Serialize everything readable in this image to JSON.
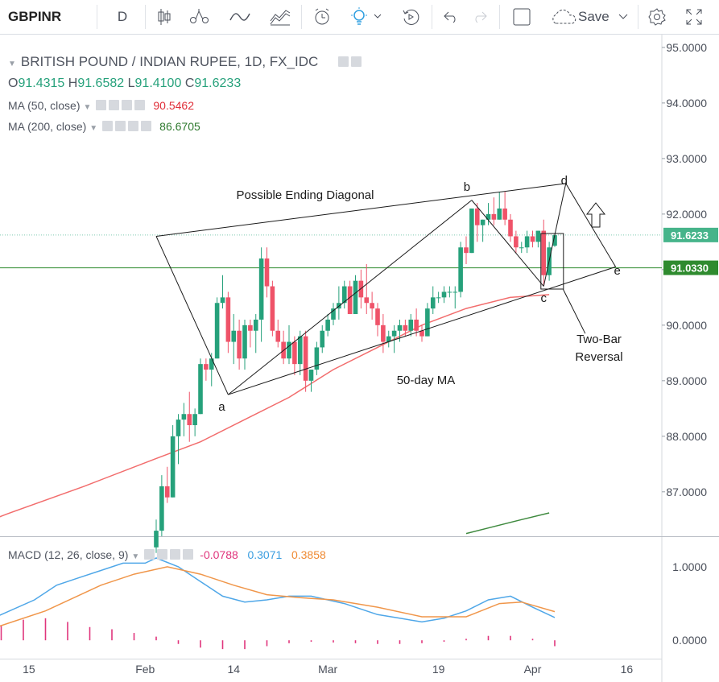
{
  "toolbar": {
    "symbol": "GBPINR",
    "interval": "D",
    "save_label": "Save",
    "icons": [
      "candles-icon",
      "compare-icon",
      "indicators-icon",
      "templates-icon",
      "alert-icon",
      "replay-icon",
      "undo-icon",
      "redo-icon",
      "fullscreen-icon"
    ]
  },
  "legend": {
    "title": "BRITISH POUND / INDIAN RUPEE, 1D, FX_IDC",
    "o_label": "O",
    "o": "91.4315",
    "h_label": "H",
    "h": "91.6582",
    "l_label": "L",
    "l": "91.4100",
    "c_label": "C",
    "c": "91.6233",
    "ma50_label": "MA (50, close)",
    "ma50_value": "90.5462",
    "ma200_label": "MA (200, close)",
    "ma200_value": "86.6705",
    "macd_label": "MACD (12, 26, close, 9)",
    "macd_hist": "-0.0788",
    "macd_line": "0.3071",
    "macd_signal": "0.3858"
  },
  "colors": {
    "up": "#26a17b",
    "down": "#ef5369",
    "ma50": "#f26d6d",
    "ma200": "#3f8a3f",
    "macd": "#4fa7e8",
    "signal": "#f0964a",
    "hist": "#e0357c",
    "price_tag": "#46b48a",
    "level_tag": "#2f8b2f"
  },
  "annotations": {
    "diagonal": "Possible Ending Diagonal",
    "a": "a",
    "b": "b",
    "c": "c",
    "d": "d",
    "e": "e",
    "ma_label": "50-day MA",
    "reversal_1": "Two-Bar",
    "reversal_2": "Reversal"
  },
  "chart_data": {
    "type": "candlestick",
    "price_axis": {
      "ylim": [
        86.2,
        95.1
      ],
      "ticks": [
        "95.0000",
        "94.0000",
        "93.0000",
        "92.0000",
        "91.0000",
        "90.0000",
        "89.0000",
        "88.0000",
        "87.0000"
      ]
    },
    "last_price": "91.6233",
    "level": "91.0330",
    "x_labels": [
      "15",
      "Feb",
      "14",
      "Mar",
      "19",
      "Apr",
      "16"
    ],
    "candles": [
      [
        86.0,
        86.5,
        85.9,
        86.3
      ],
      [
        86.3,
        87.3,
        86.2,
        87.1
      ],
      [
        87.1,
        87.45,
        86.8,
        86.9
      ],
      [
        86.9,
        88.2,
        86.9,
        88.0
      ],
      [
        88.0,
        88.4,
        87.5,
        88.3
      ],
      [
        88.3,
        88.6,
        88.0,
        88.4
      ],
      [
        88.4,
        88.8,
        87.9,
        88.2
      ],
      [
        88.2,
        88.5,
        88.0,
        88.4
      ],
      [
        88.4,
        89.4,
        88.4,
        89.3
      ],
      [
        89.3,
        89.4,
        89.0,
        89.2
      ],
      [
        89.2,
        89.5,
        88.9,
        89.4
      ],
      [
        89.4,
        90.5,
        89.4,
        90.4
      ],
      [
        90.4,
        90.9,
        90.3,
        90.5
      ],
      [
        90.5,
        90.6,
        89.5,
        89.7
      ],
      [
        89.7,
        90.2,
        89.3,
        89.9
      ],
      [
        89.9,
        90.1,
        89.2,
        89.4
      ],
      [
        89.4,
        90.1,
        89.2,
        90.0
      ],
      [
        90.0,
        90.1,
        89.6,
        89.9
      ],
      [
        89.9,
        90.2,
        89.5,
        90.1
      ],
      [
        90.1,
        91.4,
        89.7,
        91.2
      ],
      [
        91.2,
        91.4,
        90.5,
        90.7
      ],
      [
        90.7,
        90.8,
        89.8,
        89.9
      ],
      [
        89.9,
        90.1,
        89.6,
        89.7
      ],
      [
        89.7,
        89.9,
        89.3,
        89.4
      ],
      [
        89.4,
        90.0,
        89.3,
        89.7
      ],
      [
        89.7,
        89.8,
        89.1,
        89.3
      ],
      [
        89.3,
        89.9,
        89.1,
        89.8
      ],
      [
        89.8,
        89.9,
        88.8,
        89.0
      ],
      [
        89.0,
        89.2,
        88.8,
        89.2
      ],
      [
        89.2,
        89.7,
        89.1,
        89.6
      ],
      [
        89.6,
        90.0,
        89.5,
        89.9
      ],
      [
        89.9,
        90.2,
        89.8,
        90.1
      ],
      [
        90.1,
        90.4,
        90.0,
        90.3
      ],
      [
        90.3,
        90.7,
        90.1,
        90.4
      ],
      [
        90.4,
        90.8,
        90.3,
        90.7
      ],
      [
        90.7,
        90.8,
        90.2,
        90.2
      ],
      [
        90.2,
        90.9,
        90.2,
        90.8
      ],
      [
        90.8,
        91.0,
        90.3,
        90.5
      ],
      [
        90.5,
        91.1,
        90.2,
        90.4
      ],
      [
        90.4,
        90.6,
        90.1,
        90.3
      ],
      [
        90.3,
        90.4,
        89.8,
        90.0
      ],
      [
        90.0,
        90.2,
        89.5,
        89.7
      ],
      [
        89.7,
        89.9,
        89.6,
        89.8
      ],
      [
        89.8,
        90.0,
        89.5,
        89.9
      ],
      [
        89.9,
        90.1,
        89.7,
        90.0
      ],
      [
        90.0,
        90.1,
        89.8,
        89.9
      ],
      [
        89.9,
        90.2,
        89.8,
        90.1
      ],
      [
        90.1,
        90.3,
        89.8,
        89.9
      ],
      [
        89.9,
        90.0,
        89.7,
        89.8
      ],
      [
        89.8,
        90.4,
        89.8,
        90.3
      ],
      [
        90.3,
        90.7,
        90.2,
        90.5
      ],
      [
        90.5,
        90.6,
        90.4,
        90.5
      ],
      [
        90.5,
        90.7,
        90.4,
        90.6
      ],
      [
        90.6,
        90.7,
        90.5,
        90.6
      ],
      [
        90.6,
        90.7,
        90.3,
        90.6
      ],
      [
        90.6,
        91.5,
        90.5,
        91.4
      ],
      [
        91.4,
        91.6,
        91.1,
        91.3
      ],
      [
        91.3,
        92.1,
        91.3,
        92.1
      ],
      [
        92.1,
        92.2,
        91.5,
        91.8
      ],
      [
        91.8,
        91.9,
        91.5,
        91.9
      ],
      [
        91.9,
        92.2,
        91.8,
        92.0
      ],
      [
        92.0,
        92.3,
        91.8,
        91.9
      ],
      [
        91.9,
        92.4,
        91.9,
        92.1
      ],
      [
        92.1,
        92.4,
        91.8,
        91.9
      ],
      [
        91.9,
        92.0,
        91.5,
        91.6
      ],
      [
        91.6,
        91.7,
        91.3,
        91.4
      ],
      [
        91.4,
        91.5,
        91.3,
        91.4
      ],
      [
        91.4,
        91.7,
        91.3,
        91.6
      ],
      [
        91.6,
        91.7,
        91.4,
        91.5
      ],
      [
        91.5,
        91.7,
        91.4,
        91.7
      ],
      [
        91.7,
        91.9,
        90.7,
        90.9
      ],
      [
        90.9,
        91.5,
        90.8,
        91.4
      ],
      [
        91.43,
        91.66,
        91.41,
        91.62
      ]
    ],
    "ma50": [
      [
        -40,
        86.1
      ],
      [
        -27,
        86.6
      ],
      [
        -13,
        87.1
      ],
      [
        0,
        87.6
      ],
      [
        8,
        87.9
      ],
      [
        16,
        88.3
      ],
      [
        24,
        88.7
      ],
      [
        32,
        89.2
      ],
      [
        40,
        89.6
      ],
      [
        48,
        90.0
      ],
      [
        56,
        90.3
      ],
      [
        64,
        90.5
      ],
      [
        71,
        90.55
      ]
    ],
    "ma200": [
      [
        56,
        86.25
      ],
      [
        60,
        86.35
      ],
      [
        66,
        86.5
      ],
      [
        71,
        86.62
      ]
    ],
    "macd": {
      "ylim": [
        -0.25,
        1.35
      ],
      "ticks": [
        "1.0000",
        "0.0000"
      ],
      "macd": [
        [
          -40,
          0.0
        ],
        [
          -34,
          0.15
        ],
        [
          -28,
          0.35
        ],
        [
          -22,
          0.55
        ],
        [
          -18,
          0.75
        ],
        [
          -14,
          0.85
        ],
        [
          -10,
          0.95
        ],
        [
          -6,
          1.05
        ],
        [
          -2,
          1.05
        ],
        [
          0,
          1.12
        ],
        [
          4,
          1.0
        ],
        [
          8,
          0.8
        ],
        [
          12,
          0.6
        ],
        [
          16,
          0.52
        ],
        [
          20,
          0.55
        ],
        [
          24,
          0.6
        ],
        [
          28,
          0.6
        ],
        [
          34,
          0.5
        ],
        [
          40,
          0.35
        ],
        [
          44,
          0.3
        ],
        [
          48,
          0.25
        ],
        [
          52,
          0.3
        ],
        [
          56,
          0.4
        ],
        [
          60,
          0.55
        ],
        [
          64,
          0.6
        ],
        [
          68,
          0.45
        ],
        [
          72,
          0.31
        ]
      ],
      "signal": [
        [
          -40,
          0.0
        ],
        [
          -30,
          0.15
        ],
        [
          -20,
          0.4
        ],
        [
          -10,
          0.75
        ],
        [
          -4,
          0.9
        ],
        [
          2,
          1.0
        ],
        [
          8,
          0.9
        ],
        [
          14,
          0.75
        ],
        [
          20,
          0.62
        ],
        [
          26,
          0.58
        ],
        [
          32,
          0.55
        ],
        [
          40,
          0.45
        ],
        [
          48,
          0.32
        ],
        [
          56,
          0.32
        ],
        [
          62,
          0.5
        ],
        [
          66,
          0.52
        ],
        [
          72,
          0.39
        ]
      ],
      "hist": [
        [
          -40,
          0.02
        ],
        [
          -36,
          0.05
        ],
        [
          -32,
          0.15
        ],
        [
          -28,
          0.2
        ],
        [
          -24,
          0.28
        ],
        [
          -20,
          0.3
        ],
        [
          -16,
          0.25
        ],
        [
          -12,
          0.18
        ],
        [
          -8,
          0.15
        ],
        [
          -4,
          0.1
        ],
        [
          0,
          0.05
        ],
        [
          4,
          -0.05
        ],
        [
          8,
          -0.1
        ],
        [
          12,
          -0.12
        ],
        [
          16,
          -0.12
        ],
        [
          20,
          -0.08
        ],
        [
          24,
          -0.04
        ],
        [
          28,
          -0.02
        ],
        [
          32,
          -0.03
        ],
        [
          36,
          -0.04
        ],
        [
          40,
          -0.05
        ],
        [
          44,
          -0.05
        ],
        [
          48,
          -0.04
        ],
        [
          52,
          -0.02
        ],
        [
          56,
          0.02
        ],
        [
          60,
          0.06
        ],
        [
          64,
          0.06
        ],
        [
          68,
          0.02
        ],
        [
          72,
          -0.08
        ]
      ]
    }
  }
}
